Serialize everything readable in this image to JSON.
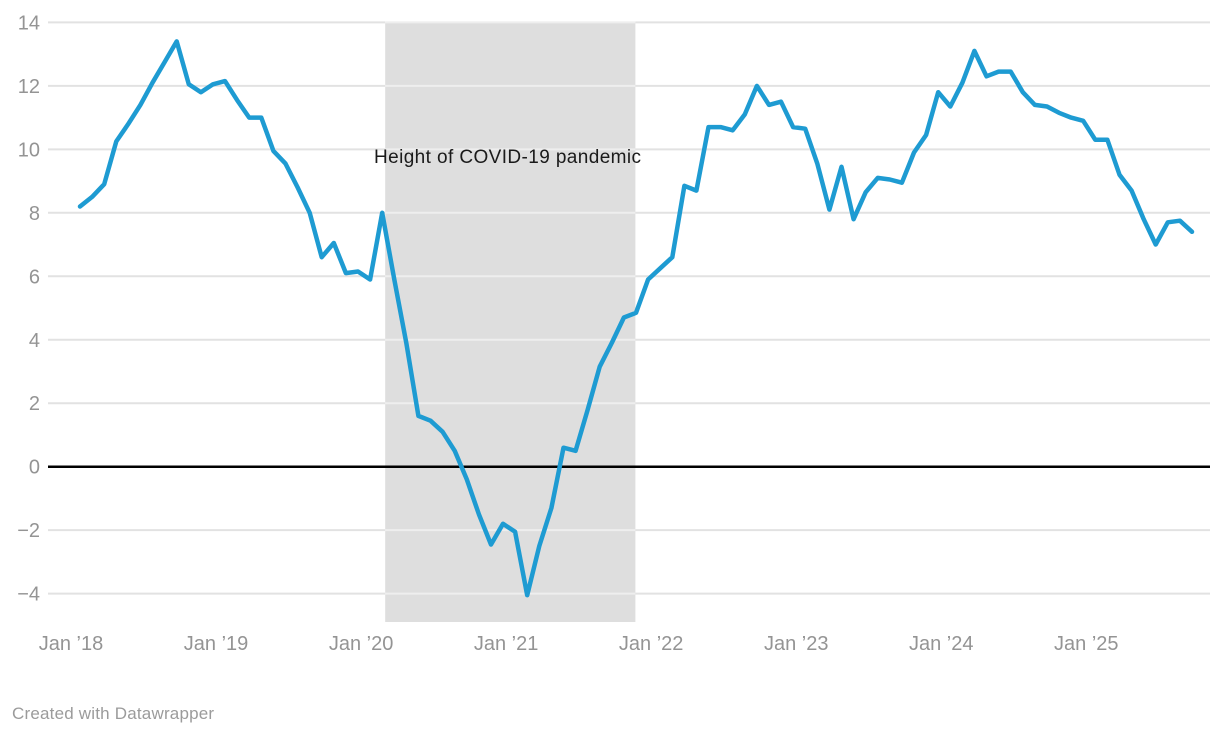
{
  "chart_data": {
    "type": "line",
    "title": "",
    "frequency": "monthly",
    "start_month": "2018-01",
    "end_month": "2025-09",
    "series": [
      {
        "name": "value",
        "values": [
          8.2,
          8.5,
          8.9,
          10.25,
          10.8,
          11.4,
          12.1,
          12.75,
          13.4,
          12.05,
          11.8,
          12.05,
          12.15,
          11.55,
          11.0,
          11.0,
          9.95,
          9.55,
          8.8,
          8.0,
          6.6,
          7.05,
          6.1,
          6.15,
          5.9,
          8.0,
          5.9,
          3.9,
          1.6,
          1.45,
          1.1,
          0.5,
          -0.4,
          -1.5,
          -2.45,
          -1.8,
          -2.05,
          -4.05,
          -2.5,
          -1.3,
          0.6,
          0.5,
          1.8,
          3.15,
          3.9,
          4.7,
          4.85,
          5.9,
          6.25,
          6.6,
          8.85,
          8.7,
          10.7,
          10.7,
          10.6,
          11.1,
          12.0,
          11.4,
          11.5,
          10.7,
          10.65,
          9.55,
          8.1,
          9.45,
          7.8,
          8.65,
          9.1,
          9.05,
          8.95,
          9.9,
          10.45,
          11.8,
          11.35,
          12.1,
          13.1,
          12.3,
          12.45,
          12.45,
          11.8,
          11.4,
          11.35,
          11.15,
          11.0,
          10.9,
          10.3,
          10.3,
          9.2,
          8.7,
          7.8,
          7.0,
          7.7,
          7.75,
          7.4
        ]
      }
    ],
    "x_tick_labels": [
      "Jan ’18",
      "Jan ’19",
      "Jan ’20",
      "Jan ’21",
      "Jan ’22",
      "Jan ’23",
      "Jan ’24",
      "Jan ’25"
    ],
    "y_ticks": [
      14,
      12,
      10,
      8,
      6,
      4,
      2,
      0,
      -2,
      -4
    ],
    "y_tick_labels": [
      "14",
      "12",
      "10",
      "8",
      "6",
      "4",
      "2",
      "0",
      "−2",
      "−4"
    ],
    "ylim": [
      -4.9,
      14
    ],
    "grid": "horizontal",
    "zero_baseline": true,
    "legend": "none",
    "shaded_region": {
      "label": "Height of COVID-19 pandemic",
      "start_month": "2020-03",
      "end_month": "2021-11",
      "start_index": 25.25,
      "end_index": 45.95
    },
    "colors": {
      "line": "#1e9bd2",
      "shaded_region": "#dedede",
      "gridline": "#e2e2e2",
      "gridline_in_region": "#eeeeee",
      "zero_baseline": "#000000",
      "axis_text": "#949494",
      "annotation_text": "#1a1a1a",
      "background": "#ffffff"
    }
  },
  "footer": {
    "attribution": "Created with Datawrapper"
  }
}
